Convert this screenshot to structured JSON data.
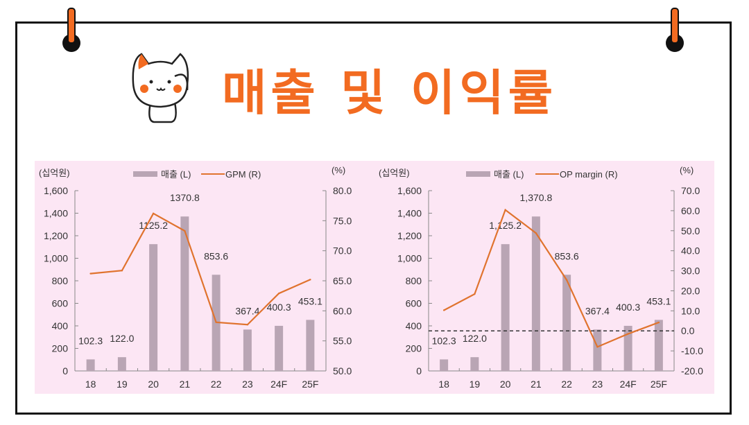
{
  "title": "매출 및 이익률",
  "colors": {
    "accent": "#f26b21",
    "bar": "#b9a5b4",
    "panel": "#fce6f4",
    "line": "#e0732e"
  },
  "chart_data": [
    {
      "type": "bar+line",
      "categories": [
        "18",
        "19",
        "20",
        "21",
        "22",
        "23",
        "24F",
        "25F"
      ],
      "left_unit": "(십억원)",
      "right_unit": "(%)",
      "left_ylim": [
        0,
        1600
      ],
      "left_ticks": [
        "0",
        "200",
        "400",
        "600",
        "800",
        "1,000",
        "1,200",
        "1,400",
        "1,600"
      ],
      "right_ylim": [
        50,
        80
      ],
      "right_ticks": [
        "50.0",
        "55.0",
        "60.0",
        "65.0",
        "70.0",
        "75.0",
        "80.0"
      ],
      "series": [
        {
          "name": "매출 (L)",
          "type": "bar",
          "axis": "left",
          "values": [
            102.3,
            122.0,
            1125.2,
            1370.8,
            853.6,
            367.4,
            400.3,
            453.1
          ],
          "labels": [
            "102.3",
            "122.0",
            "1125.2",
            "1370.8",
            "853.6",
            "367.4",
            "400.3",
            "453.1"
          ]
        },
        {
          "name": "GPM (R)",
          "type": "line",
          "axis": "right",
          "values": [
            66.2,
            66.7,
            76.2,
            73.3,
            58.1,
            57.7,
            62.9,
            65.2
          ]
        }
      ],
      "legend": "top"
    },
    {
      "type": "bar+line",
      "categories": [
        "18",
        "19",
        "20",
        "21",
        "22",
        "23",
        "24F",
        "25F"
      ],
      "left_unit": "(십억원)",
      "right_unit": "(%)",
      "left_ylim": [
        0,
        1600
      ],
      "left_ticks": [
        "0",
        "200",
        "400",
        "600",
        "800",
        "1,000",
        "1,200",
        "1,400",
        "1,600"
      ],
      "right_ylim": [
        -20,
        70
      ],
      "right_ticks": [
        "-20.0",
        "-10.0",
        "0.0",
        "10.0",
        "20.0",
        "30.0",
        "40.0",
        "50.0",
        "60.0",
        "70.0"
      ],
      "zero_line": true,
      "series": [
        {
          "name": "매출 (L)",
          "type": "bar",
          "axis": "left",
          "values": [
            102.3,
            122.0,
            1125.2,
            1370.8,
            853.6,
            367.4,
            400.3,
            453.1
          ],
          "labels": [
            "102.3",
            "122.0",
            "1,125.2",
            "1,370.8",
            "853.6",
            "367.4",
            "400.3",
            "453.1"
          ]
        },
        {
          "name": "OP margin (R)",
          "type": "line",
          "axis": "right",
          "values": [
            10.3,
            18.4,
            60.4,
            48.8,
            25.4,
            -8.0,
            -1.5,
            4.2
          ]
        }
      ],
      "legend": "top"
    }
  ]
}
